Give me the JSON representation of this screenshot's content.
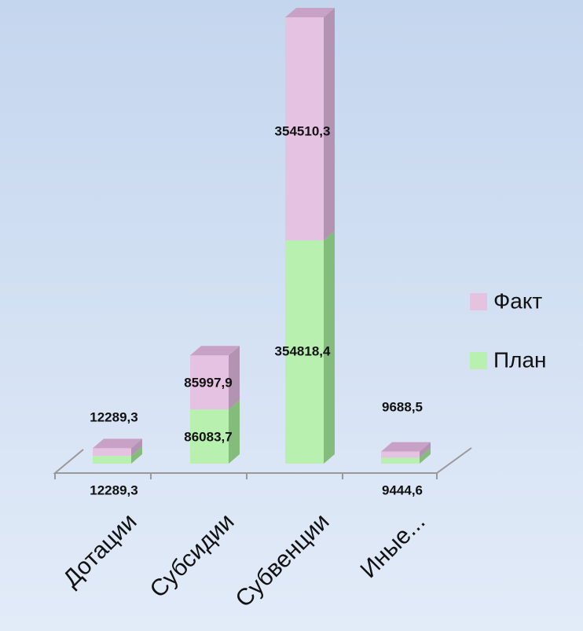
{
  "chart_data": {
    "type": "bar3d_stacked",
    "categories": [
      "Дотации",
      "Субсидии",
      "Субвенции",
      "Иные..."
    ],
    "series": [
      {
        "name": "План",
        "color": "#b8f0b0",
        "values": [
          12289.3,
          86083.7,
          354818.4,
          9444.6
        ],
        "value_labels": [
          "12289,3",
          "86083,7",
          "354818,4",
          "9444,6"
        ]
      },
      {
        "name": "Факт",
        "color": "#e6c2e2",
        "values": [
          12289.3,
          85997.9,
          354510.3,
          9688.5
        ],
        "value_labels": [
          "12289,3",
          "85997,9",
          "354510,3",
          "9688,5"
        ]
      }
    ]
  }
}
